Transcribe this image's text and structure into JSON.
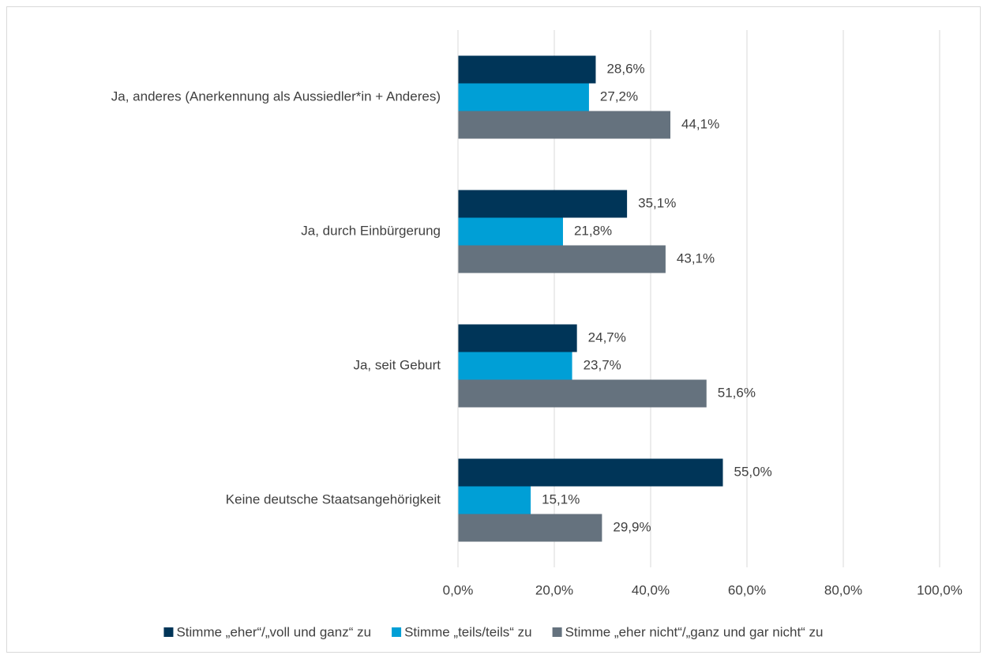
{
  "chart_data": {
    "type": "hbar",
    "categories": [
      "Ja, anderes (Anerkennung als Aussiedler*in + Anderes)",
      "Ja, durch Einbürgerung",
      "Ja, seit Geburt",
      "Keine deutsche Staatsangehörigkeit"
    ],
    "series": [
      {
        "name": "Stimme „eher“/„voll und ganz“ zu",
        "color": "#003558",
        "values": [
          28.6,
          35.1,
          24.7,
          55.0
        ],
        "value_labels": [
          "28,6%",
          "35,1%",
          "24,7%",
          "55,0%"
        ]
      },
      {
        "name": "Stimme „teils/teils“ zu",
        "color": "#009fd6",
        "values": [
          27.2,
          21.8,
          23.7,
          15.1
        ],
        "value_labels": [
          "27,2%",
          "21,8%",
          "23,7%",
          "15,1%"
        ]
      },
      {
        "name": "Stimme „eher nicht“/„ganz und gar nicht“ zu",
        "color": "#65727e",
        "values": [
          44.1,
          43.1,
          51.6,
          29.9
        ],
        "value_labels": [
          "44,1%",
          "43,1%",
          "51,6%",
          "29,9%"
        ]
      }
    ],
    "xlim": [
      0,
      100
    ],
    "xticks": [
      {
        "value": 0,
        "label": "0,0%"
      },
      {
        "value": 20,
        "label": "20,0%"
      },
      {
        "value": 40,
        "label": "40,0%"
      },
      {
        "value": 60,
        "label": "60,0%"
      },
      {
        "value": 80,
        "label": "80,0%"
      },
      {
        "value": 100,
        "label": "100,0%"
      }
    ],
    "grid": true,
    "legend": "bottom"
  }
}
